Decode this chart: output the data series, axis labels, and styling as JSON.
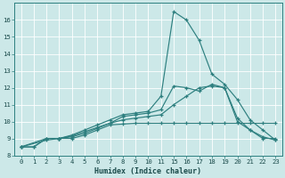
{
  "xlabel": "Humidex (Indice chaleur)",
  "bg_color": "#cce8e8",
  "grid_color": "#ffffff",
  "line_color": "#2d7f7f",
  "ylim": [
    8,
    17
  ],
  "yticks": [
    8,
    9,
    10,
    11,
    12,
    13,
    14,
    15,
    16
  ],
  "xtick_labels": [
    "0",
    "1",
    "2",
    "3",
    "4",
    "5",
    "6",
    "7",
    "8",
    "9",
    "10",
    "11",
    "15",
    "16",
    "17",
    "18",
    "19",
    "20",
    "21",
    "22",
    "23"
  ],
  "lines": [
    {
      "xi": [
        0,
        1,
        2,
        3,
        4,
        5,
        6,
        7,
        8,
        9,
        10,
        11,
        12,
        13,
        14,
        15,
        16,
        17,
        18,
        19,
        20
      ],
      "y": [
        8.5,
        8.5,
        9.0,
        9.0,
        9.0,
        9.2,
        9.5,
        9.8,
        9.85,
        9.9,
        9.9,
        9.9,
        9.9,
        9.9,
        9.9,
        9.9,
        9.9,
        9.9,
        9.9,
        9.9,
        9.9
      ]
    },
    {
      "xi": [
        0,
        1,
        2,
        3,
        4,
        5,
        6,
        7,
        8,
        9,
        10,
        11,
        12,
        13,
        14,
        15,
        16,
        17,
        18,
        19,
        20
      ],
      "y": [
        8.5,
        8.5,
        9.0,
        9.0,
        9.1,
        9.3,
        9.6,
        9.9,
        10.1,
        10.2,
        10.3,
        10.4,
        11.0,
        11.5,
        12.0,
        12.1,
        12.0,
        10.2,
        9.5,
        9.0,
        9.0
      ]
    },
    {
      "xi": [
        0,
        2,
        3,
        4,
        5,
        6,
        7,
        8,
        9,
        10,
        11,
        12,
        13,
        14,
        15,
        16,
        17,
        18,
        19,
        20
      ],
      "y": [
        8.5,
        8.9,
        9.0,
        9.15,
        9.4,
        9.65,
        9.9,
        10.3,
        10.4,
        10.5,
        10.7,
        12.1,
        12.0,
        11.8,
        12.2,
        12.0,
        10.0,
        9.5,
        9.1,
        8.9
      ]
    },
    {
      "xi": [
        0,
        2,
        3,
        4,
        5,
        6,
        7,
        8,
        9,
        10,
        11,
        12,
        13,
        14,
        15,
        16,
        17,
        18,
        19,
        20
      ],
      "y": [
        8.5,
        9.0,
        9.0,
        9.2,
        9.5,
        9.8,
        10.1,
        10.4,
        10.5,
        10.6,
        11.5,
        16.5,
        16.0,
        14.8,
        12.8,
        12.2,
        11.3,
        10.1,
        9.5,
        8.9
      ]
    }
  ]
}
